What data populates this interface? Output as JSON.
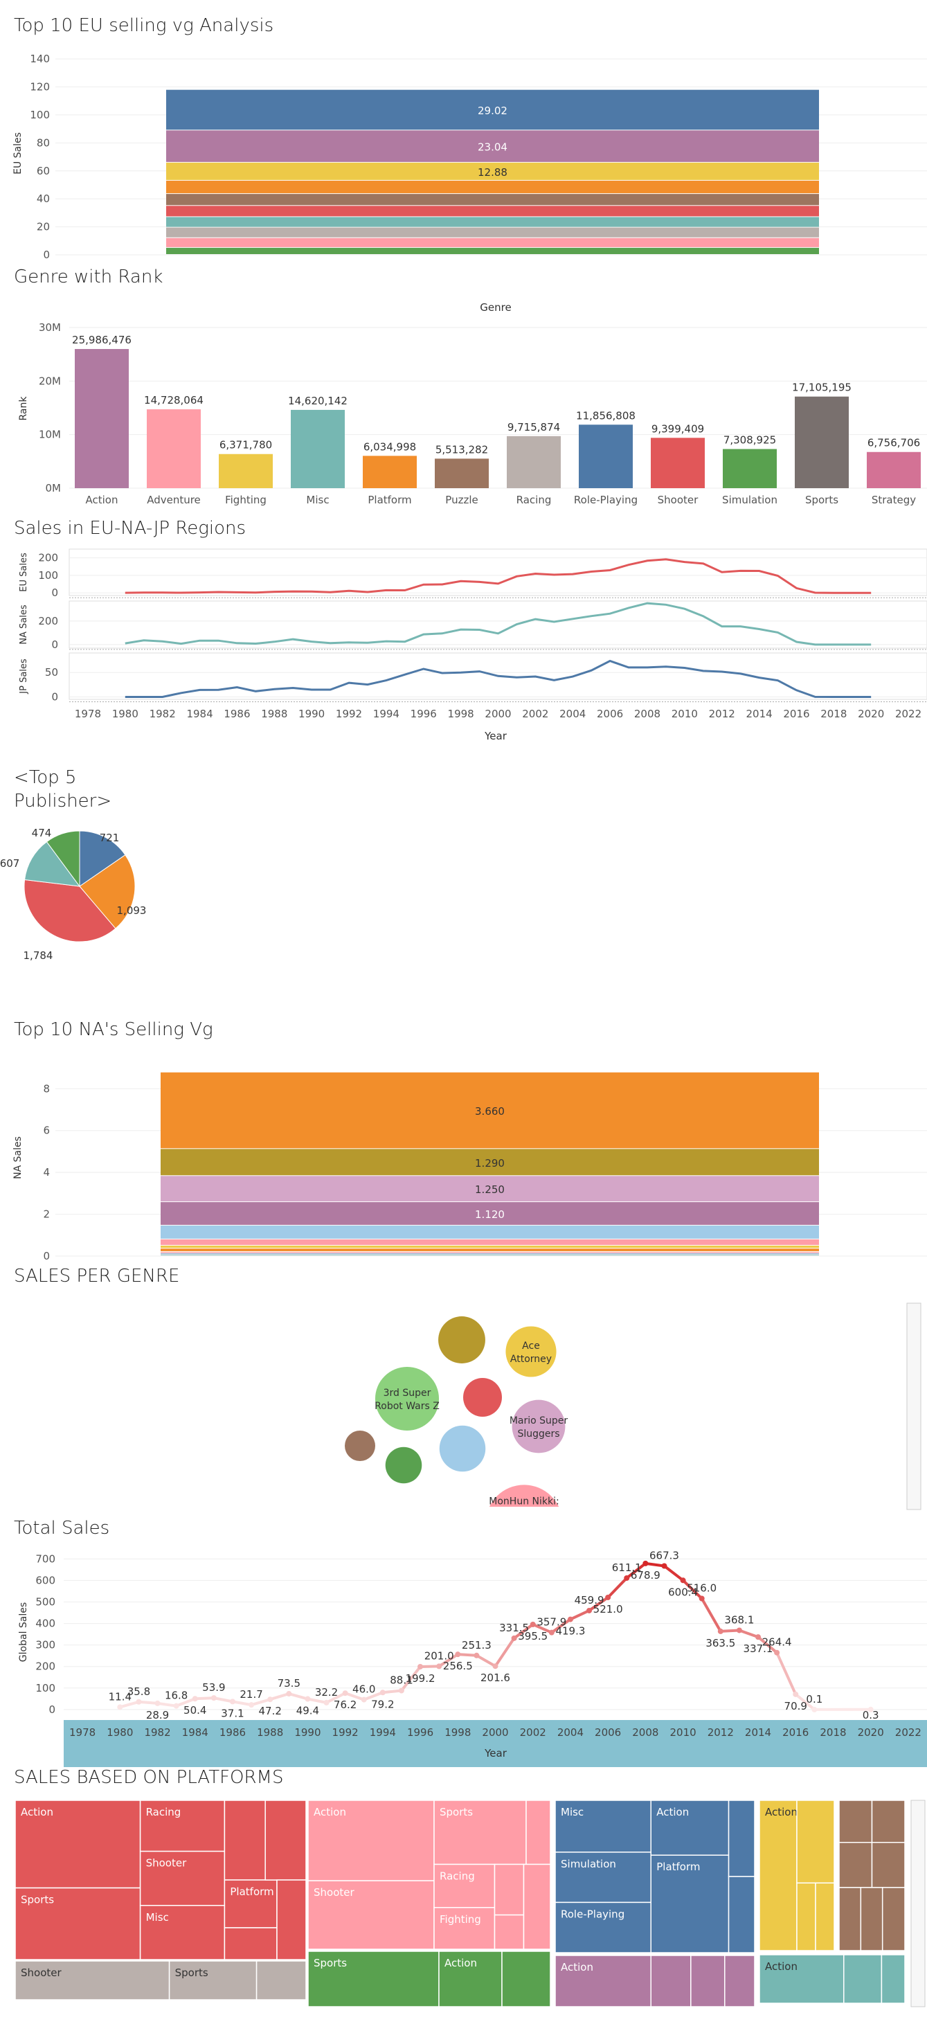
{
  "titles": {
    "eu_top10": "Top 10 EU selling vg Analysis",
    "genre_rank": "Genre with Rank",
    "regions": "Sales in EU-NA-JP Regions",
    "publisher_line1": "<Top 5",
    "publisher_line2": "Publisher>",
    "na_top10": "Top 10 NA's Selling Vg",
    "sales_per_genre": "SALES PER GENRE",
    "total_sales": "Total Sales",
    "platforms": "SALES BASED ON PLATFORMS"
  },
  "colors": {
    "blue": "#4e79a7",
    "orange": "#f28e2b",
    "red": "#e15759",
    "teal": "#76b7b2",
    "green": "#59a14f",
    "yellow": "#edc948",
    "purple": "#b07aa1",
    "pink": "#ff9da7",
    "brown": "#9c755f",
    "gray": "#bab0ac",
    "olive": "#b6992d",
    "lightblue": "#a0cbe8",
    "darkgray": "#79706e",
    "rose": "#d37295",
    "lilac": "#d4a6c8"
  },
  "chart_data": [
    {
      "id": "eu_top10",
      "type": "bar",
      "stacked": true,
      "ylabel": "EU Sales",
      "ylim": [
        0,
        145
      ],
      "yticks": [
        0,
        20,
        40,
        60,
        80,
        100,
        120,
        140
      ],
      "segments": [
        {
          "value": 5.0,
          "color": "green",
          "label": ""
        },
        {
          "value": 7.0,
          "color": "pink",
          "label": ""
        },
        {
          "value": 7.5,
          "color": "gray",
          "label": ""
        },
        {
          "value": 7.5,
          "color": "teal",
          "label": ""
        },
        {
          "value": 8.0,
          "color": "red",
          "label": ""
        },
        {
          "value": 8.5,
          "color": "brown",
          "label": ""
        },
        {
          "value": 9.5,
          "color": "orange",
          "label": ""
        },
        {
          "value": 12.88,
          "color": "yellow",
          "label": "12.88"
        },
        {
          "value": 23.04,
          "color": "purple",
          "label": "23.04"
        },
        {
          "value": 29.02,
          "color": "blue",
          "label": "29.02"
        }
      ]
    },
    {
      "id": "genre_rank",
      "type": "bar",
      "header": "Genre",
      "ylabel": "Rank",
      "ylim": [
        0,
        30000000
      ],
      "yticks": [
        {
          "v": 0,
          "t": "0M"
        },
        {
          "v": 10000000,
          "t": "10M"
        },
        {
          "v": 20000000,
          "t": "20M"
        },
        {
          "v": 30000000,
          "t": "30M"
        }
      ],
      "categories": [
        "Action",
        "Adventure",
        "Fighting",
        "Misc",
        "Platform",
        "Puzzle",
        "Racing",
        "Role-Playing",
        "Shooter",
        "Simulation",
        "Sports",
        "Strategy"
      ],
      "values": [
        25986476,
        14728064,
        6371780,
        14620142,
        6034998,
        5513282,
        9715874,
        11856808,
        9399409,
        7308925,
        17105195,
        6756706
      ],
      "labels": [
        "25,986,476",
        "14,728,064",
        "6,371,780",
        "14,620,142",
        "6,034,998",
        "5,513,282",
        "9,715,874",
        "11,856,808",
        "9,399,409",
        "7,308,925",
        "17,105,195",
        "6,756,706"
      ],
      "colors": [
        "purple",
        "pink",
        "yellow",
        "teal",
        "orange",
        "brown",
        "gray",
        "blue",
        "red",
        "green",
        "darkgray",
        "rose"
      ]
    },
    {
      "id": "regions",
      "type": "line",
      "xlabel": "Year",
      "xticks": [
        1978,
        1980,
        1982,
        1984,
        1986,
        1988,
        1990,
        1992,
        1994,
        1996,
        1998,
        2000,
        2002,
        2004,
        2006,
        2008,
        2010,
        2012,
        2014,
        2016,
        2018,
        2020,
        2022
      ],
      "xlim": [
        1977,
        2023
      ],
      "x": [
        1980,
        1981,
        1982,
        1983,
        1984,
        1985,
        1986,
        1987,
        1988,
        1989,
        1990,
        1991,
        1992,
        1993,
        1994,
        1995,
        1996,
        1997,
        1998,
        1999,
        2000,
        2001,
        2002,
        2003,
        2004,
        2005,
        2006,
        2007,
        2008,
        2009,
        2010,
        2011,
        2012,
        2013,
        2014,
        2015,
        2016,
        2017,
        2018,
        2019,
        2020
      ],
      "series": [
        {
          "name": "EU Sales",
          "color": "red",
          "ylim": [
            -15,
            250
          ],
          "yticks": [
            0,
            100,
            200
          ],
          "values": [
            0.5,
            2,
            1.5,
            0.8,
            2.5,
            4.7,
            3,
            1.5,
            6.5,
            8.4,
            7.6,
            3.9,
            11.7,
            4.7,
            14.9,
            14.5,
            47.3,
            48.3,
            66.9,
            62.7,
            52.8,
            94.6,
            109.7,
            103.8,
            107.3,
            121.5,
            129.2,
            160.2,
            183.4,
            191.6,
            176.6,
            167.4,
            118.8,
            125.8,
            125.6,
            97.7,
            26.8,
            0.7,
            0,
            0,
            0
          ]
        },
        {
          "name": "NA Sales",
          "color": "teal",
          "ylim": [
            -30,
            370
          ],
          "yticks": [
            0,
            200
          ],
          "values": [
            10.6,
            35.8,
            27,
            7.8,
            33.3,
            33.7,
            12.5,
            8.5,
            23.9,
            45.2,
            25.5,
            12.8,
            18.1,
            15.6,
            28.2,
            24.8,
            86.8,
            94.8,
            128.4,
            126,
            94.5,
            173.1,
            216.2,
            193.6,
            218.3,
            242.6,
            263.1,
            312,
            351.4,
            338.9,
            304.2,
            241.2,
            154.9,
            154.8,
            131.9,
            102.8,
            22.7,
            0,
            0,
            0,
            0
          ]
        },
        {
          "name": "JP Sales",
          "color": "blue",
          "ylim": [
            -5,
            90
          ],
          "yticks": [
            0,
            50
          ],
          "values": [
            0,
            0,
            0,
            8.1,
            14.3,
            14.6,
            19.8,
            11.6,
            15.8,
            18.4,
            14.9,
            14.8,
            28.9,
            25.3,
            33.9,
            45.8,
            57.4,
            48.9,
            50,
            52.3,
            42.8,
            39.9,
            41.8,
            34.2,
            41.6,
            54.3,
            73.7,
            60.3,
            60.3,
            61.9,
            59.5,
            53.3,
            51.7,
            47.6,
            39.5,
            33.7,
            13.7,
            0.1,
            0,
            0,
            0
          ]
        }
      ]
    },
    {
      "id": "publishers",
      "type": "pie",
      "values": [
        721,
        1093,
        1784,
        607,
        474
      ],
      "labels": [
        "721",
        "1,093",
        "1,784",
        "607",
        "474"
      ],
      "colors": [
        "blue",
        "orange",
        "red",
        "teal",
        "green"
      ]
    },
    {
      "id": "na_top10",
      "type": "bar",
      "stacked": true,
      "ylabel": "NA Sales",
      "ylim": [
        0,
        9.4
      ],
      "yticks": [
        0,
        2,
        4,
        6,
        8
      ],
      "segments": [
        {
          "value": 0.06,
          "color": "teal",
          "label": ""
        },
        {
          "value": 0.06,
          "color": "blue",
          "label": ""
        },
        {
          "value": 0.08,
          "color": "pink",
          "label": ""
        },
        {
          "value": 0.16,
          "color": "orange",
          "label": ""
        },
        {
          "value": 0.14,
          "color": "yellow",
          "label": ""
        },
        {
          "value": 0.3,
          "color": "pink",
          "label": ""
        },
        {
          "value": 0.66,
          "color": "lightblue",
          "label": ""
        },
        {
          "value": 1.12,
          "color": "purple",
          "label": "1.120"
        },
        {
          "value": 1.25,
          "color": "lilac",
          "label": "1.250"
        },
        {
          "value": 1.29,
          "color": "olive",
          "label": "1.290"
        },
        {
          "value": 3.66,
          "color": "orange",
          "label": "3.660"
        }
      ]
    },
    {
      "id": "sales_per_genre",
      "type": "bubble",
      "bubbles": [
        {
          "label": "",
          "color": "olive",
          "v": 50
        },
        {
          "label": "Ace Attorney",
          "color": "yellow",
          "v": 58
        },
        {
          "label": "3rd Super Robot Wars Z",
          "color": "lightgreen",
          "v": 92
        },
        {
          "label": "",
          "color": "red",
          "v": 34
        },
        {
          "label": "Mario Super Sluggers",
          "color": "lilac",
          "v": 64
        },
        {
          "label": "",
          "color": "brown",
          "v": 21
        },
        {
          "label": "",
          "color": "lightblue",
          "v": 48
        },
        {
          "label": "",
          "color": "green",
          "v": 30
        },
        {
          "label": "MonHun Nikki:",
          "color": "pink",
          "v": 134
        }
      ]
    },
    {
      "id": "total_sales",
      "type": "line",
      "xlabel": "Year",
      "ylabel": "Global Sales",
      "ylim": [
        -10,
        730
      ],
      "yticks": [
        0,
        100,
        200,
        300,
        400,
        500,
        600,
        700
      ],
      "xlim": [
        1977,
        2023
      ],
      "xticks": [
        1978,
        1980,
        1982,
        1984,
        1986,
        1988,
        1990,
        1992,
        1994,
        1996,
        1998,
        2000,
        2002,
        2004,
        2006,
        2008,
        2010,
        2012,
        2014,
        2016,
        2018,
        2020,
        2022
      ],
      "x": [
        1980,
        1981,
        1982,
        1983,
        1984,
        1985,
        1986,
        1987,
        1988,
        1989,
        1990,
        1991,
        1992,
        1993,
        1994,
        1995,
        1996,
        1997,
        1998,
        1999,
        2000,
        2001,
        2002,
        2003,
        2004,
        2005,
        2006,
        2007,
        2008,
        2009,
        2010,
        2011,
        2012,
        2013,
        2014,
        2015,
        2016,
        2017,
        2020
      ],
      "values": [
        11.4,
        35.8,
        28.9,
        16.8,
        50.4,
        53.9,
        37.1,
        21.7,
        47.2,
        73.5,
        49.4,
        32.2,
        76.2,
        46.0,
        79.2,
        88.1,
        199.2,
        201.0,
        256.5,
        251.3,
        201.6,
        331.5,
        395.5,
        357.9,
        419.3,
        459.9,
        521.0,
        611.1,
        678.9,
        667.3,
        600.4,
        516.0,
        363.5,
        368.1,
        337.1,
        264.4,
        70.9,
        0.1,
        0.3
      ],
      "labels": [
        "11.4",
        "35.8",
        "28.9",
        "16.8",
        "50.4",
        "53.9",
        "37.1",
        "21.7",
        "47.2",
        "73.5",
        "49.4",
        "32.2",
        "76.2",
        "46.0",
        "79.2",
        "88.1",
        "199.2",
        "201.0",
        "256.5",
        "251.3",
        "201.6",
        "331.5",
        "395.5",
        "357.9",
        "419.3",
        "459.9",
        "521.0",
        "611.1",
        "678.9",
        "667.3",
        "600.4",
        "516.0",
        "363.5",
        "368.1",
        "337.1",
        "264.4",
        "70.9",
        "0.1",
        "0.3"
      ]
    },
    {
      "id": "platforms",
      "type": "heatmap",
      "blocks": [
        {
          "color": "red",
          "cells": [
            [
              "Action",
              0,
              0,
              0.43,
              0.55
            ],
            [
              "Sports",
              0,
              0.55,
              0.43,
              0.45
            ],
            [
              "Racing",
              0.43,
              0,
              0.29,
              0.32
            ],
            [
              "Shooter",
              0.43,
              0.32,
              0.29,
              0.34
            ],
            [
              "Misc",
              0.43,
              0.66,
              0.29,
              0.34
            ],
            [
              "",
              0.72,
              0,
              0.14,
              0.5
            ],
            [
              "Platform",
              0.72,
              0.5,
              0.18,
              0.3
            ],
            [
              "",
              0.86,
              0,
              0.14,
              0.5
            ],
            [
              "",
              0.72,
              0.8,
              0.18,
              0.2
            ],
            [
              "",
              0.9,
              0.5,
              0.1,
              0.5
            ]
          ]
        },
        {
          "color": "gray",
          "cells": [
            [
              "Shooter",
              0,
              0,
              0.53,
              1
            ],
            [
              "Sports",
              0.53,
              0,
              0.3,
              1
            ],
            [
              "",
              0.83,
              0,
              0.17,
              1
            ]
          ]
        },
        {
          "color": "pink",
          "cells": [
            [
              "Action",
              0,
              0,
              0.52,
              0.54
            ],
            [
              "Shooter",
              0,
              0.54,
              0.52,
              0.46
            ],
            [
              "Sports",
              0.52,
              0,
              0.38,
              0.43
            ],
            [
              "Racing",
              0.52,
              0.43,
              0.25,
              0.29
            ],
            [
              "Fighting",
              0.52,
              0.72,
              0.25,
              0.28
            ],
            [
              "",
              0.9,
              0,
              0.1,
              0.43
            ],
            [
              "",
              0.77,
              0.43,
              0.12,
              0.34
            ],
            [
              "",
              0.77,
              0.77,
              0.12,
              0.23
            ],
            [
              "",
              0.89,
              0.43,
              0.11,
              0.57
            ]
          ]
        },
        {
          "color": "green",
          "cells": [
            [
              "Sports",
              0,
              0,
              0.54,
              1
            ],
            [
              "Action",
              0.54,
              0,
              0.26,
              1
            ],
            [
              "",
              0.8,
              0,
              0.2,
              1
            ]
          ]
        },
        {
          "color": "blue",
          "cells": [
            [
              "Misc",
              0,
              0,
              0.48,
              0.34
            ],
            [
              "Simulation",
              0,
              0.34,
              0.48,
              0.33
            ],
            [
              "Role-Playing",
              0,
              0.67,
              0.48,
              0.33
            ],
            [
              "Action",
              0.48,
              0,
              0.39,
              0.36
            ],
            [
              "Platform",
              0.48,
              0.36,
              0.39,
              0.64
            ],
            [
              "",
              0.87,
              0,
              0.13,
              0.5
            ],
            [
              "",
              0.87,
              0.5,
              0.13,
              0.5
            ]
          ]
        },
        {
          "color": "purple",
          "cells": [
            [
              "Action",
              0,
              0,
              0.48,
              1
            ],
            [
              "",
              0.48,
              0,
              0.2,
              1
            ],
            [
              "",
              0.68,
              0,
              0.17,
              1
            ],
            [
              "",
              0.85,
              0,
              0.15,
              1
            ]
          ]
        },
        {
          "color": "yellow",
          "cells": [
            [
              "Action",
              0,
              0,
              0.5,
              1
            ],
            [
              "",
              0.5,
              0,
              0.5,
              0.55
            ],
            [
              "",
              0.5,
              0.55,
              0.25,
              0.45
            ],
            [
              "",
              0.75,
              0.55,
              0.25,
              0.45
            ]
          ]
        },
        {
          "color": "brown",
          "cells": [
            [
              "",
              0,
              0,
              0.5,
              0.28
            ],
            [
              "",
              0.5,
              0,
              0.5,
              0.28
            ],
            [
              "",
              0,
              0.28,
              0.5,
              0.3
            ],
            [
              "",
              0.5,
              0.28,
              0.5,
              0.3
            ],
            [
              "",
              0,
              0.58,
              0.33,
              0.42
            ],
            [
              "",
              0.33,
              0.58,
              0.33,
              0.42
            ],
            [
              "",
              0.66,
              0.58,
              0.34,
              0.42
            ]
          ]
        },
        {
          "color": "teal",
          "cells": [
            [
              "Action",
              0,
              0,
              0.58,
              1
            ],
            [
              "",
              0.58,
              0,
              0.26,
              1
            ],
            [
              "",
              0.84,
              0,
              0.16,
              1
            ]
          ]
        }
      ]
    }
  ]
}
